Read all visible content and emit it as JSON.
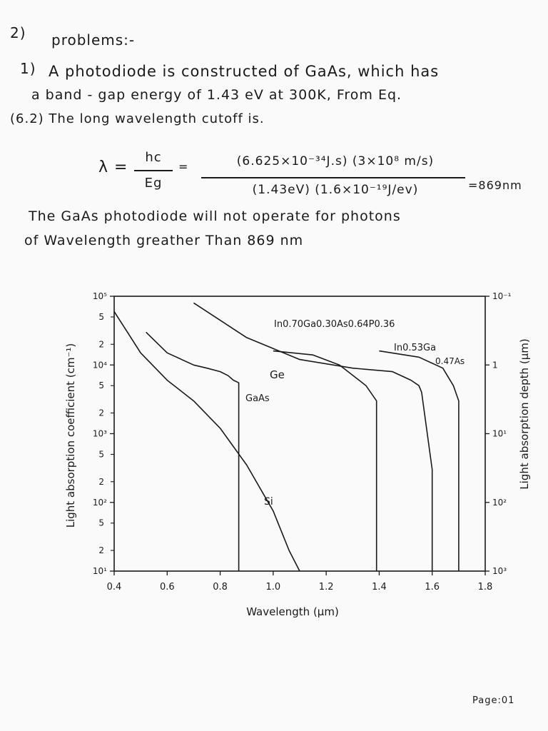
{
  "header": {
    "number": "2)",
    "title": "problems:-"
  },
  "problem": {
    "number": "1)",
    "line1": "A photodiode is constructed of GaAs, which has",
    "line2": "a band - gap energy of 1.43 eV at 300K, From Eq.",
    "line3": "(6.2) The long wavelength cutoff is."
  },
  "equation": {
    "lhs": "λ =",
    "num1": "hc",
    "den1": "Eg",
    "eq1": "=",
    "num2": "(6.625×10⁻³⁴J.s) (3×10⁸ m/s)",
    "den2": "(1.43eV) (1.6×10⁻¹⁹J/ev)",
    "result": "=869nm"
  },
  "conclusion": {
    "line1": "The GaAs photodiode will not operate for photons",
    "line2": "of Wavelength greather Than 869 nm"
  },
  "chart_data": {
    "type": "line",
    "xlabel": "Wavelength (μm)",
    "ylabel": "Light absorption coefficient (cm⁻¹)",
    "y2label": "Light absorption depth (μm)",
    "xlim": [
      0.4,
      1.8
    ],
    "ylim": [
      10,
      100000
    ],
    "yscale": "log",
    "x_ticks": [
      "0.4",
      "0.6",
      "0.8",
      "1.0",
      "1.2",
      "1.4",
      "1.6",
      "1.8"
    ],
    "y_decade_labels": [
      "10¹",
      "10²",
      "10³",
      "10⁴",
      "10⁵"
    ],
    "y_minor_labels": [
      "2",
      "5"
    ],
    "y2_ticks": [
      "10⁻¹",
      "1",
      "10¹",
      "10²",
      "10³"
    ],
    "series": [
      {
        "name": "Si",
        "x": [
          0.4,
          0.45,
          0.5,
          0.6,
          0.7,
          0.8,
          0.9,
          1.0,
          1.06,
          1.1
        ],
        "y": [
          60000,
          30000,
          15000,
          6000,
          3000,
          1200,
          350,
          75,
          20,
          10
        ]
      },
      {
        "name": "GaAs",
        "x": [
          0.52,
          0.6,
          0.7,
          0.75,
          0.8,
          0.83,
          0.85,
          0.87,
          0.87
        ],
        "y": [
          30000,
          15000,
          10000,
          9000,
          8000,
          7000,
          6000,
          5500,
          10
        ]
      },
      {
        "name": "Ge",
        "x": [
          0.7,
          0.9,
          1.1,
          1.3,
          1.45,
          1.52,
          1.55,
          1.56,
          1.6,
          1.6
        ],
        "y": [
          80000,
          25000,
          12000,
          9000,
          8000,
          6000,
          5000,
          4000,
          300,
          10
        ]
      },
      {
        "name": "In0.70Ga0.30As0.64P0.36",
        "x": [
          1.0,
          1.15,
          1.25,
          1.35,
          1.39,
          1.39
        ],
        "y": [
          16000,
          14000,
          10000,
          5000,
          3000,
          10
        ]
      },
      {
        "name": "In0.53Ga0.47As",
        "x": [
          1.4,
          1.55,
          1.64,
          1.68,
          1.7,
          1.7
        ],
        "y": [
          16000,
          13000,
          9000,
          5000,
          3000,
          10
        ]
      }
    ],
    "annotations": {
      "quat_label": "In0.70Ga0.30As0.64P0.36",
      "ingaas_line1": "In0.53Ga",
      "ingaas_line2": "0.47As",
      "ge": "Ge",
      "gaas": "GaAs",
      "si": "Si"
    },
    "grid": false
  },
  "footer": {
    "page": "Page:01"
  }
}
